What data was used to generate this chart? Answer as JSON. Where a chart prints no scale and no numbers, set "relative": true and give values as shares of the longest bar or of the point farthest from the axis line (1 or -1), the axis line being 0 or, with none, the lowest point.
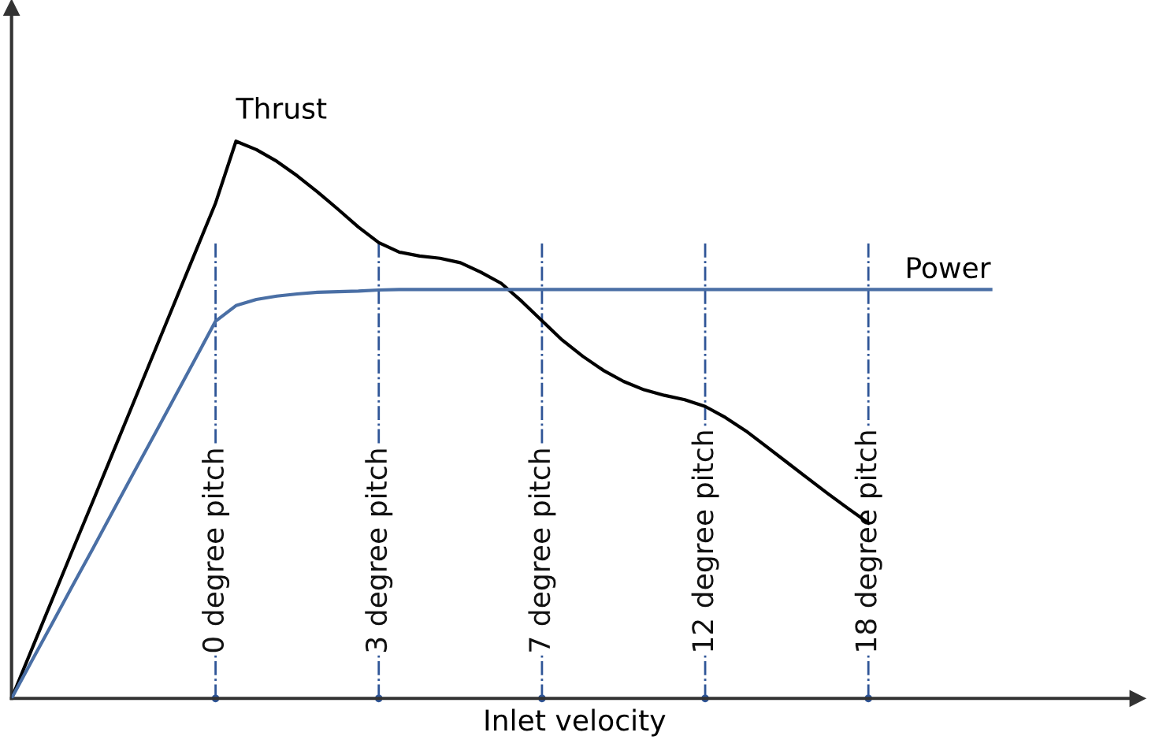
{
  "chart_data": {
    "type": "line",
    "relative": true,
    "xlabel": "Inlet velocity",
    "grid": "x",
    "legend": false,
    "marker": "none",
    "categories": [
      null,
      null,
      null,
      null,
      null,
      null,
      null,
      null,
      null,
      null,
      "0 degree pitch",
      null,
      null,
      null,
      null,
      null,
      null,
      null,
      "3 degree pitch",
      null,
      null,
      null,
      null,
      null,
      null,
      null,
      "7 degree pitch",
      null,
      null,
      null,
      null,
      null,
      null,
      null,
      "12 degree pitch",
      null,
      null,
      null,
      null,
      null,
      null,
      null,
      "18 degree pitch",
      null,
      null,
      null,
      null,
      null,
      null
    ],
    "series": [
      {
        "name": "Thrust",
        "color": "#000000",
        "values": [
          0,
          0.089,
          0.178,
          0.267,
          0.355,
          0.444,
          0.533,
          0.622,
          0.711,
          0.8,
          0.889,
          1.0,
          0.985,
          0.964,
          0.938,
          0.909,
          0.878,
          0.846,
          0.818,
          0.801,
          0.794,
          0.79,
          0.782,
          0.765,
          0.745,
          0.713,
          0.678,
          0.643,
          0.614,
          0.589,
          0.569,
          0.554,
          0.544,
          0.536,
          0.524,
          0.504,
          0.48,
          0.452,
          0.424,
          0.396,
          0.368,
          0.341,
          0.315,
          null,
          null,
          null,
          null,
          null,
          null
        ]
      },
      {
        "name": "Power",
        "color": "#4a6fa5",
        "values": [
          0,
          0.068,
          0.135,
          0.203,
          0.27,
          0.338,
          0.406,
          0.473,
          0.541,
          0.609,
          0.677,
          0.705,
          0.716,
          0.722,
          0.726,
          0.729,
          0.73,
          0.731,
          0.733,
          0.734,
          0.734,
          0.734,
          0.734,
          0.734,
          0.734,
          0.734,
          0.734,
          0.734,
          0.734,
          0.734,
          0.734,
          0.734,
          0.734,
          0.734,
          0.734,
          0.734,
          0.734,
          0.734,
          0.734,
          0.734,
          0.734,
          0.734,
          0.734,
          0.734,
          0.734,
          0.734,
          0.734,
          0.734,
          0.734
        ]
      }
    ]
  }
}
